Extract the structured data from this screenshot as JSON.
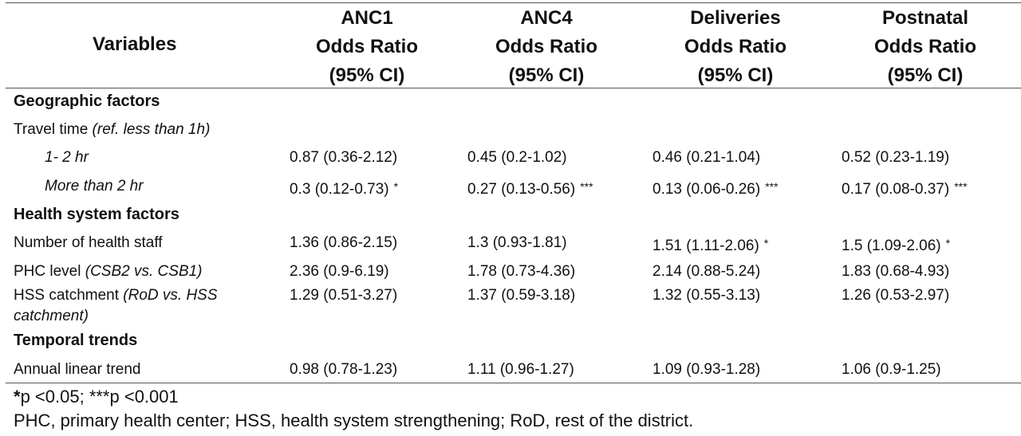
{
  "header": {
    "variables": "Variables",
    "columns": [
      {
        "line1": "ANC1",
        "line2": "Odds Ratio",
        "line3": "(95% CI)"
      },
      {
        "line1": "ANC4",
        "line2": "Odds Ratio",
        "line3": "(95% CI)"
      },
      {
        "line1": "Deliveries",
        "line2": "Odds Ratio",
        "line3": "(95% CI)"
      },
      {
        "line1": "Postnatal",
        "line2": "Odds Ratio",
        "line3": "(95% CI)"
      }
    ]
  },
  "sections": {
    "geographic": "Geographic factors",
    "health": "Health system factors",
    "temporal": "Temporal trends"
  },
  "rows": {
    "travel": {
      "label": "Travel time ",
      "note": "(ref. less than 1h)"
    },
    "one_two": {
      "label": "1- 2 hr",
      "values": [
        "0.87 (0.36-2.12)",
        "0.45 (0.2-1.02)",
        "0.46 (0.21-1.04)",
        "0.52 (0.23-1.19)"
      ]
    },
    "more_two": {
      "label": "More than 2 hr",
      "values": [
        "0.3 (0.12-0.73)",
        "0.27 (0.13-0.56)",
        "0.13 (0.06-0.26)",
        "0.17 (0.08-0.37)"
      ],
      "sig": [
        "*",
        "***",
        "***",
        "***"
      ]
    },
    "staff": {
      "label": "Number of health staff",
      "values": [
        "1.36 (0.86-2.15)",
        "1.3 (0.93-1.81)",
        "1.51 (1.11-2.06)",
        "1.5 (1.09-2.06)"
      ],
      "sig": [
        "",
        "",
        "*",
        "*"
      ]
    },
    "phc": {
      "label": "PHC level ",
      "note": "(CSB2 vs. CSB1)",
      "values": [
        "2.36 (0.9-6.19)",
        "1.78 (0.73-4.36)",
        "2.14 (0.88-5.24)",
        "1.83 (0.68-4.93)"
      ]
    },
    "hss": {
      "label": "HSS catchment ",
      "note1": "(RoD vs. HSS",
      "note2": "catchment)",
      "values": [
        "1.29 (0.51-3.27)",
        "1.37 (0.59-3.18)",
        "1.32 (0.55-3.13)",
        "1.26 (0.53-2.97)"
      ]
    },
    "annual": {
      "label": "Annual linear trend",
      "values": [
        "0.98 (0.78-1.23)",
        "1.11 (0.96-1.27)",
        "1.09 (0.93-1.28)",
        "1.06 (0.9-1.25)"
      ]
    }
  },
  "footnotes": {
    "sig_p1": "*",
    "sig_t1": "p <0.05; ",
    "sig_p2": "***",
    "sig_t2": "p <0.001",
    "abbrev": "PHC, primary health center; HSS, health system strengthening; RoD, rest of the district."
  }
}
